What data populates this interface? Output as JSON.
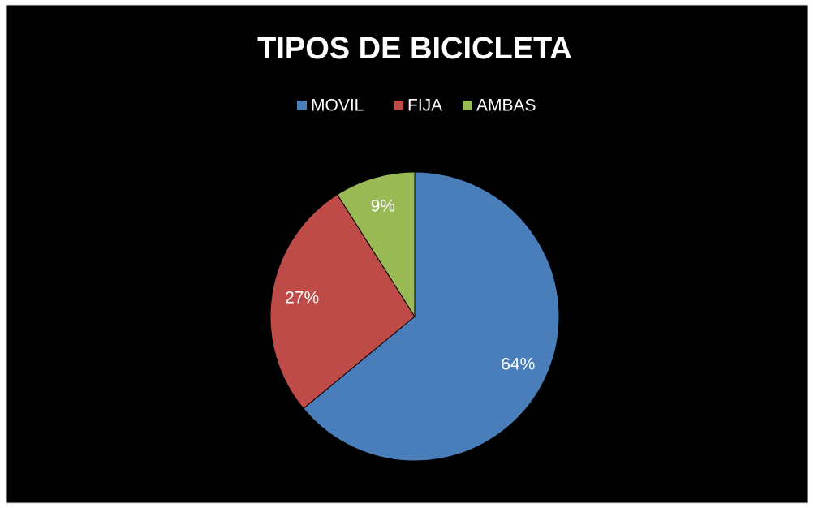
{
  "chart_data": {
    "type": "pie",
    "title": "TIPOS DE BICICLETA",
    "categories": [
      "MOVIL",
      "FIJA",
      "AMBAS"
    ],
    "values": [
      64,
      27,
      9
    ],
    "value_labels": [
      "64%",
      "27%",
      "9%"
    ],
    "colors": [
      "#4a7ebb",
      "#be4b48",
      "#98b954"
    ],
    "legend": "top"
  }
}
